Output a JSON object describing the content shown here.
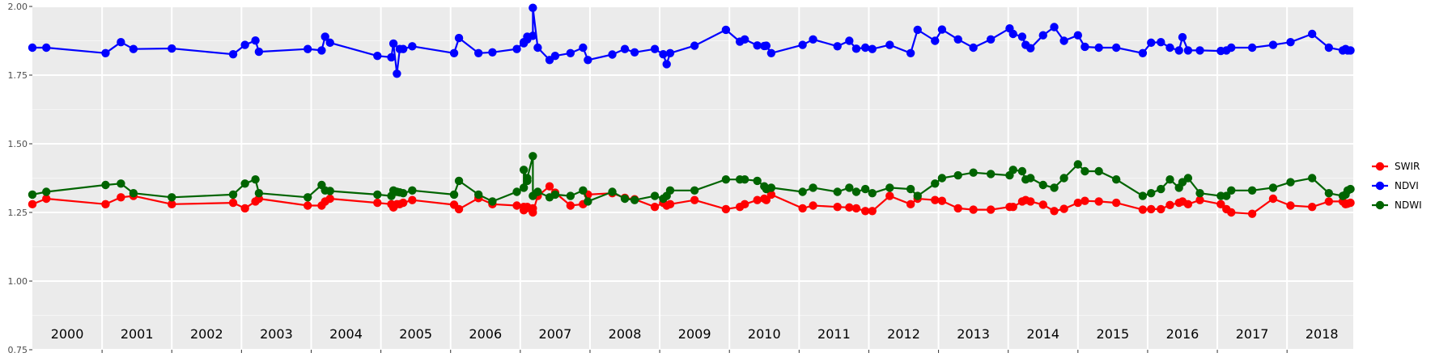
{
  "chart_data": {
    "type": "line",
    "title": "",
    "xlabel": "",
    "ylabel": "",
    "ylim": [
      0.75,
      2.0
    ],
    "xlim": [
      2000.0,
      2018.95
    ],
    "y_ticks": [
      "0.75",
      "1.00",
      "1.25",
      "1.50",
      "1.75",
      "2.00"
    ],
    "y_tick_values": [
      0.75,
      1.0,
      1.25,
      1.5,
      1.75,
      2.0
    ],
    "year_labels": [
      "2000",
      "2001",
      "2002",
      "2003",
      "2004",
      "2005",
      "2006",
      "2007",
      "2008",
      "2009",
      "2010",
      "2011",
      "2012",
      "2013",
      "2014",
      "2015",
      "2016",
      "2017",
      "2018"
    ],
    "grid": true,
    "legend_position": "right",
    "series": [
      {
        "name": "SWIR",
        "color": "#ff0000",
        "x": [
          2000.0,
          2000.2,
          2001.05,
          2001.27,
          2001.45,
          2002.0,
          2002.88,
          2003.05,
          2003.2,
          2003.25,
          2003.95,
          2004.15,
          2004.2,
          2004.27,
          2004.95,
          2005.15,
          2005.18,
          2005.23,
          2005.27,
          2005.32,
          2005.45,
          2006.05,
          2006.12,
          2006.4,
          2006.6,
          2006.95,
          2007.05,
          2007.05,
          2007.1,
          2007.1,
          2007.18,
          2007.18,
          2007.25,
          2007.42,
          2007.5,
          2007.72,
          2007.9,
          2007.97,
          2008.32,
          2008.5,
          2008.64,
          2008.93,
          2009.05,
          2009.1,
          2009.15,
          2009.5,
          2009.95,
          2010.15,
          2010.22,
          2010.4,
          2010.5,
          2010.53,
          2010.6,
          2011.05,
          2011.2,
          2011.55,
          2011.72,
          2011.82,
          2011.95,
          2012.05,
          2012.3,
          2012.6,
          2012.7,
          2012.95,
          2013.05,
          2013.28,
          2013.5,
          2013.75,
          2014.02,
          2014.07,
          2014.2,
          2014.25,
          2014.32,
          2014.5,
          2014.66,
          2014.8,
          2015.0,
          2015.1,
          2015.3,
          2015.55,
          2015.93,
          2016.05,
          2016.19,
          2016.32,
          2016.45,
          2016.5,
          2016.58,
          2016.75,
          2017.05,
          2017.13,
          2017.2,
          2017.5,
          2017.8,
          2018.05,
          2018.36,
          2018.6,
          2018.8,
          2018.84,
          2018.87,
          2018.91
        ],
        "y": [
          1.28,
          1.3,
          1.28,
          1.305,
          1.31,
          1.28,
          1.285,
          1.265,
          1.29,
          1.3,
          1.275,
          1.275,
          1.29,
          1.3,
          1.285,
          1.28,
          1.268,
          1.28,
          1.28,
          1.285,
          1.295,
          1.278,
          1.262,
          1.302,
          1.28,
          1.275,
          1.27,
          1.258,
          1.27,
          1.266,
          1.265,
          1.25,
          1.31,
          1.345,
          1.322,
          1.275,
          1.28,
          1.315,
          1.32,
          1.303,
          1.298,
          1.27,
          1.285,
          1.275,
          1.28,
          1.295,
          1.262,
          1.27,
          1.28,
          1.295,
          1.3,
          1.295,
          1.315,
          1.265,
          1.275,
          1.27,
          1.268,
          1.265,
          1.255,
          1.255,
          1.31,
          1.28,
          1.3,
          1.295,
          1.292,
          1.265,
          1.26,
          1.26,
          1.27,
          1.27,
          1.29,
          1.295,
          1.29,
          1.278,
          1.255,
          1.263,
          1.285,
          1.292,
          1.29,
          1.285,
          1.26,
          1.262,
          1.262,
          1.277,
          1.285,
          1.29,
          1.28,
          1.295,
          1.28,
          1.262,
          1.25,
          1.245,
          1.3,
          1.275,
          1.27,
          1.29,
          1.29,
          1.28,
          1.282,
          1.285
        ],
        "y_fix": true
      },
      {
        "name": "NDVI",
        "color": "#0000ff",
        "x": [
          2000.0,
          2000.2,
          2001.05,
          2001.27,
          2001.45,
          2002.0,
          2002.88,
          2003.05,
          2003.2,
          2003.25,
          2003.95,
          2004.15,
          2004.2,
          2004.27,
          2004.95,
          2005.15,
          2005.18,
          2005.23,
          2005.27,
          2005.32,
          2005.45,
          2006.05,
          2006.12,
          2006.4,
          2006.6,
          2006.95,
          2007.05,
          2007.05,
          2007.1,
          2007.1,
          2007.18,
          2007.18,
          2007.25,
          2007.42,
          2007.5,
          2007.72,
          2007.9,
          2007.97,
          2008.32,
          2008.5,
          2008.64,
          2008.93,
          2009.05,
          2009.1,
          2009.15,
          2009.5,
          2009.95,
          2010.15,
          2010.22,
          2010.4,
          2010.5,
          2010.53,
          2010.6,
          2011.05,
          2011.2,
          2011.55,
          2011.72,
          2011.82,
          2011.95,
          2012.05,
          2012.3,
          2012.6,
          2012.7,
          2012.95,
          2013.05,
          2013.28,
          2013.5,
          2013.75,
          2014.02,
          2014.07,
          2014.2,
          2014.25,
          2014.32,
          2014.5,
          2014.66,
          2014.8,
          2015.0,
          2015.1,
          2015.3,
          2015.55,
          2015.93,
          2016.05,
          2016.19,
          2016.32,
          2016.45,
          2016.5,
          2016.58,
          2016.75,
          2017.05,
          2017.13,
          2017.2,
          2017.5,
          2017.8,
          2018.05,
          2018.36,
          2018.6,
          2018.8,
          2018.84,
          2018.87,
          2018.91
        ],
        "y": [
          1.85,
          1.85,
          1.83,
          1.87,
          1.845,
          1.847,
          1.826,
          1.86,
          1.876,
          1.835,
          1.845,
          1.84,
          1.89,
          1.868,
          1.82,
          1.815,
          1.865,
          1.755,
          1.845,
          1.845,
          1.855,
          1.83,
          1.885,
          1.83,
          1.833,
          1.845,
          1.87,
          1.866,
          1.88,
          1.89,
          1.893,
          1.995,
          1.85,
          1.805,
          1.82,
          1.83,
          1.85,
          1.805,
          1.825,
          1.845,
          1.833,
          1.845,
          1.826,
          1.79,
          1.83,
          1.857,
          1.915,
          1.872,
          1.88,
          1.858,
          1.856,
          1.857,
          1.83,
          1.86,
          1.88,
          1.855,
          1.875,
          1.846,
          1.85,
          1.845,
          1.86,
          1.83,
          1.915,
          1.875,
          1.916,
          1.88,
          1.85,
          1.88,
          1.92,
          1.9,
          1.89,
          1.86,
          1.848,
          1.895,
          1.925,
          1.875,
          1.895,
          1.853,
          1.85,
          1.85,
          1.83,
          1.868,
          1.87,
          1.85,
          1.84,
          1.888,
          1.84,
          1.84,
          1.838,
          1.84,
          1.85,
          1.85,
          1.86,
          1.87,
          1.9,
          1.85,
          1.84,
          1.845,
          1.84,
          1.84
        ],
        "y_fix": true
      },
      {
        "name": "NDWI",
        "color": "#006400",
        "x": [
          2000.0,
          2000.2,
          2001.05,
          2001.27,
          2001.45,
          2002.0,
          2002.88,
          2003.05,
          2003.2,
          2003.25,
          2003.95,
          2004.15,
          2004.2,
          2004.27,
          2004.95,
          2005.15,
          2005.18,
          2005.23,
          2005.27,
          2005.32,
          2005.45,
          2006.05,
          2006.12,
          2006.4,
          2006.6,
          2006.95,
          2007.05,
          2007.05,
          2007.1,
          2007.1,
          2007.18,
          2007.18,
          2007.25,
          2007.42,
          2007.5,
          2007.72,
          2007.9,
          2007.97,
          2008.32,
          2008.5,
          2008.64,
          2008.93,
          2009.05,
          2009.1,
          2009.15,
          2009.5,
          2009.95,
          2010.15,
          2010.22,
          2010.4,
          2010.5,
          2010.53,
          2010.6,
          2011.05,
          2011.2,
          2011.55,
          2011.72,
          2011.82,
          2011.95,
          2012.05,
          2012.3,
          2012.6,
          2012.7,
          2012.95,
          2013.05,
          2013.28,
          2013.5,
          2013.75,
          2014.02,
          2014.07,
          2014.2,
          2014.25,
          2014.32,
          2014.5,
          2014.66,
          2014.8,
          2015.0,
          2015.1,
          2015.3,
          2015.55,
          2015.93,
          2016.05,
          2016.19,
          2016.32,
          2016.45,
          2016.5,
          2016.58,
          2016.75,
          2017.05,
          2017.13,
          2017.2,
          2017.5,
          2017.8,
          2018.05,
          2018.36,
          2018.6,
          2018.8,
          2018.84,
          2018.87,
          2018.91
        ],
        "y": [
          1.315,
          1.325,
          1.35,
          1.355,
          1.32,
          1.305,
          1.315,
          1.355,
          1.37,
          1.32,
          1.305,
          1.35,
          1.33,
          1.328,
          1.315,
          1.31,
          1.33,
          1.325,
          1.323,
          1.32,
          1.33,
          1.315,
          1.365,
          1.315,
          1.29,
          1.325,
          1.34,
          1.405,
          1.365,
          1.375,
          1.455,
          1.31,
          1.325,
          1.305,
          1.315,
          1.31,
          1.33,
          1.29,
          1.325,
          1.3,
          1.295,
          1.31,
          1.3,
          1.31,
          1.33,
          1.33,
          1.37,
          1.37,
          1.37,
          1.365,
          1.345,
          1.335,
          1.34,
          1.325,
          1.34,
          1.325,
          1.34,
          1.325,
          1.335,
          1.32,
          1.34,
          1.335,
          1.31,
          1.355,
          1.375,
          1.385,
          1.395,
          1.39,
          1.385,
          1.405,
          1.4,
          1.37,
          1.375,
          1.35,
          1.34,
          1.375,
          1.425,
          1.4,
          1.4,
          1.37,
          1.31,
          1.32,
          1.335,
          1.37,
          1.34,
          1.36,
          1.375,
          1.32,
          1.31,
          1.31,
          1.33,
          1.33,
          1.34,
          1.36,
          1.375,
          1.32,
          1.31,
          1.315,
          1.33,
          1.335
        ],
        "y_fix": true
      }
    ]
  }
}
